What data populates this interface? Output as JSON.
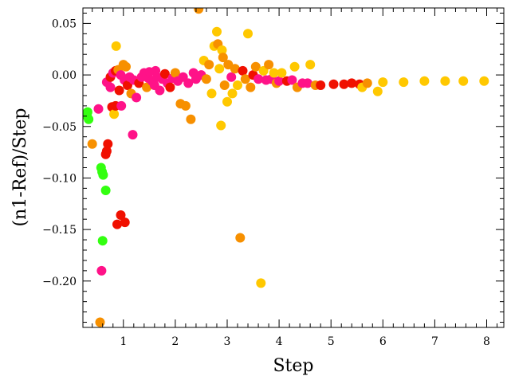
{
  "chart_data": {
    "type": "scatter",
    "title": "",
    "xlabel": "Step",
    "ylabel": "(n1-Ref)/Step",
    "xlim": [
      0.22,
      8.33
    ],
    "ylim": [
      -0.245,
      0.065
    ],
    "grid": false,
    "legend": "none",
    "xticks": [
      1,
      2,
      3,
      4,
      5,
      6,
      7,
      8
    ],
    "xtick_labels": [
      "1",
      "2",
      "3",
      "4",
      "5",
      "6",
      "7",
      "8"
    ],
    "yticks": [
      0.05,
      0.0,
      -0.05,
      -0.1,
      -0.15,
      -0.2
    ],
    "ytick_labels": [
      "0.05",
      "0.00",
      "−0.05",
      "−0.10",
      "−0.15",
      "−0.20"
    ],
    "colors": {
      "yellow": "#ffc800",
      "orange": "#f79000",
      "red": "#f01000",
      "pink": "#ff1288",
      "green": "#33ff10"
    },
    "points": [
      {
        "x": 0.3,
        "y": -0.04,
        "c": "green"
      },
      {
        "x": 0.31,
        "y": -0.036,
        "c": "green"
      },
      {
        "x": 0.33,
        "y": -0.043,
        "c": "green"
      },
      {
        "x": 0.4,
        "y": -0.067,
        "c": "orange"
      },
      {
        "x": 0.52,
        "y": -0.033,
        "c": "pink"
      },
      {
        "x": 0.55,
        "y": -0.24,
        "c": "orange"
      },
      {
        "x": 0.57,
        "y": -0.09,
        "c": "green"
      },
      {
        "x": 0.58,
        "y": -0.19,
        "c": "pink"
      },
      {
        "x": 0.59,
        "y": -0.094,
        "c": "green"
      },
      {
        "x": 0.6,
        "y": -0.161,
        "c": "green"
      },
      {
        "x": 0.61,
        "y": -0.097,
        "c": "green"
      },
      {
        "x": 0.66,
        "y": -0.112,
        "c": "green"
      },
      {
        "x": 0.66,
        "y": -0.077,
        "c": "red"
      },
      {
        "x": 0.68,
        "y": -0.074,
        "c": "red"
      },
      {
        "x": 0.7,
        "y": -0.067,
        "c": "red"
      },
      {
        "x": 0.68,
        "y": -0.007,
        "c": "pink"
      },
      {
        "x": 0.75,
        "y": -0.012,
        "c": "pink"
      },
      {
        "x": 0.78,
        "y": -0.031,
        "c": "red"
      },
      {
        "x": 0.82,
        "y": -0.038,
        "c": "yellow"
      },
      {
        "x": 0.86,
        "y": 0.028,
        "c": "yellow"
      },
      {
        "x": 0.85,
        "y": -0.03,
        "c": "red"
      },
      {
        "x": 0.88,
        "y": -0.145,
        "c": "red"
      },
      {
        "x": 0.92,
        "y": -0.015,
        "c": "red"
      },
      {
        "x": 0.95,
        "y": -0.136,
        "c": "red"
      },
      {
        "x": 0.96,
        "y": -0.03,
        "c": "pink"
      },
      {
        "x": 1.03,
        "y": -0.143,
        "c": "red"
      },
      {
        "x": 1.18,
        "y": -0.058,
        "c": "pink"
      },
      {
        "x": 0.75,
        "y": -0.002,
        "c": "red"
      },
      {
        "x": 0.8,
        "y": 0.002,
        "c": "pink"
      },
      {
        "x": 0.85,
        "y": 0.004,
        "c": "red"
      },
      {
        "x": 0.9,
        "y": 0.005,
        "c": "orange"
      },
      {
        "x": 0.95,
        "y": 0.0,
        "c": "pink"
      },
      {
        "x": 1.0,
        "y": 0.01,
        "c": "orange"
      },
      {
        "x": 1.02,
        "y": -0.005,
        "c": "pink"
      },
      {
        "x": 1.05,
        "y": 0.008,
        "c": "orange"
      },
      {
        "x": 1.08,
        "y": -0.01,
        "c": "red"
      },
      {
        "x": 1.12,
        "y": -0.002,
        "c": "pink"
      },
      {
        "x": 1.15,
        "y": -0.018,
        "c": "orange"
      },
      {
        "x": 1.2,
        "y": -0.005,
        "c": "pink"
      },
      {
        "x": 1.25,
        "y": -0.022,
        "c": "pink"
      },
      {
        "x": 1.3,
        "y": -0.008,
        "c": "red"
      },
      {
        "x": 1.35,
        "y": -0.002,
        "c": "pink"
      },
      {
        "x": 1.4,
        "y": 0.002,
        "c": "pink"
      },
      {
        "x": 1.45,
        "y": -0.012,
        "c": "orange"
      },
      {
        "x": 1.48,
        "y": -0.003,
        "c": "pink"
      },
      {
        "x": 1.5,
        "y": 0.003,
        "c": "pink"
      },
      {
        "x": 1.55,
        "y": -0.006,
        "c": "pink"
      },
      {
        "x": 1.6,
        "y": -0.01,
        "c": "pink"
      },
      {
        "x": 1.62,
        "y": 0.004,
        "c": "pink"
      },
      {
        "x": 1.65,
        "y": -0.002,
        "c": "pink"
      },
      {
        "x": 1.7,
        "y": -0.015,
        "c": "pink"
      },
      {
        "x": 1.75,
        "y": -0.004,
        "c": "pink"
      },
      {
        "x": 1.8,
        "y": 0.001,
        "c": "red"
      },
      {
        "x": 1.85,
        "y": -0.008,
        "c": "pink"
      },
      {
        "x": 1.9,
        "y": -0.012,
        "c": "red"
      },
      {
        "x": 1.95,
        "y": -0.003,
        "c": "pink"
      },
      {
        "x": 2.0,
        "y": 0.002,
        "c": "orange"
      },
      {
        "x": 2.05,
        "y": -0.006,
        "c": "pink"
      },
      {
        "x": 2.1,
        "y": -0.028,
        "c": "orange"
      },
      {
        "x": 2.15,
        "y": -0.002,
        "c": "pink"
      },
      {
        "x": 2.2,
        "y": -0.03,
        "c": "orange"
      },
      {
        "x": 2.25,
        "y": -0.008,
        "c": "pink"
      },
      {
        "x": 2.3,
        "y": -0.043,
        "c": "orange"
      },
      {
        "x": 2.35,
        "y": 0.002,
        "c": "pink"
      },
      {
        "x": 2.4,
        "y": -0.004,
        "c": "pink"
      },
      {
        "x": 2.45,
        "y": 0.064,
        "c": "orange"
      },
      {
        "x": 2.5,
        "y": 0.0,
        "c": "pink"
      },
      {
        "x": 2.55,
        "y": 0.014,
        "c": "yellow"
      },
      {
        "x": 2.6,
        "y": -0.004,
        "c": "orange"
      },
      {
        "x": 2.65,
        "y": 0.01,
        "c": "orange"
      },
      {
        "x": 2.7,
        "y": -0.018,
        "c": "yellow"
      },
      {
        "x": 2.75,
        "y": 0.028,
        "c": "yellow"
      },
      {
        "x": 2.8,
        "y": 0.042,
        "c": "yellow"
      },
      {
        "x": 2.82,
        "y": 0.03,
        "c": "orange"
      },
      {
        "x": 2.85,
        "y": 0.006,
        "c": "yellow"
      },
      {
        "x": 2.88,
        "y": -0.049,
        "c": "yellow"
      },
      {
        "x": 2.9,
        "y": 0.024,
        "c": "yellow"
      },
      {
        "x": 2.92,
        "y": 0.017,
        "c": "orange"
      },
      {
        "x": 2.95,
        "y": -0.01,
        "c": "orange"
      },
      {
        "x": 3.0,
        "y": -0.026,
        "c": "yellow"
      },
      {
        "x": 3.02,
        "y": 0.01,
        "c": "orange"
      },
      {
        "x": 3.08,
        "y": -0.002,
        "c": "pink"
      },
      {
        "x": 3.1,
        "y": -0.018,
        "c": "yellow"
      },
      {
        "x": 3.15,
        "y": 0.006,
        "c": "orange"
      },
      {
        "x": 3.2,
        "y": -0.01,
        "c": "yellow"
      },
      {
        "x": 3.25,
        "y": -0.158,
        "c": "orange"
      },
      {
        "x": 3.3,
        "y": 0.004,
        "c": "red"
      },
      {
        "x": 3.35,
        "y": -0.004,
        "c": "orange"
      },
      {
        "x": 3.4,
        "y": 0.04,
        "c": "yellow"
      },
      {
        "x": 3.45,
        "y": -0.012,
        "c": "orange"
      },
      {
        "x": 3.5,
        "y": 0.0,
        "c": "red"
      },
      {
        "x": 3.55,
        "y": 0.008,
        "c": "orange"
      },
      {
        "x": 3.6,
        "y": -0.004,
        "c": "pink"
      },
      {
        "x": 3.65,
        "y": -0.202,
        "c": "yellow"
      },
      {
        "x": 3.7,
        "y": 0.004,
        "c": "yellow"
      },
      {
        "x": 3.75,
        "y": -0.005,
        "c": "pink"
      },
      {
        "x": 3.8,
        "y": 0.01,
        "c": "orange"
      },
      {
        "x": 3.85,
        "y": -0.004,
        "c": "pink"
      },
      {
        "x": 3.9,
        "y": 0.002,
        "c": "yellow"
      },
      {
        "x": 3.95,
        "y": -0.008,
        "c": "orange"
      },
      {
        "x": 4.0,
        "y": -0.006,
        "c": "pink"
      },
      {
        "x": 4.05,
        "y": 0.002,
        "c": "yellow"
      },
      {
        "x": 4.15,
        "y": -0.006,
        "c": "red"
      },
      {
        "x": 4.25,
        "y": -0.005,
        "c": "pink"
      },
      {
        "x": 4.3,
        "y": 0.008,
        "c": "yellow"
      },
      {
        "x": 4.35,
        "y": -0.012,
        "c": "orange"
      },
      {
        "x": 4.45,
        "y": -0.008,
        "c": "pink"
      },
      {
        "x": 4.55,
        "y": -0.008,
        "c": "pink"
      },
      {
        "x": 4.6,
        "y": 0.01,
        "c": "yellow"
      },
      {
        "x": 4.7,
        "y": -0.01,
        "c": "orange"
      },
      {
        "x": 4.8,
        "y": -0.01,
        "c": "red"
      },
      {
        "x": 5.05,
        "y": -0.009,
        "c": "red"
      },
      {
        "x": 5.25,
        "y": -0.009,
        "c": "red"
      },
      {
        "x": 5.4,
        "y": -0.008,
        "c": "red"
      },
      {
        "x": 5.55,
        "y": -0.009,
        "c": "red"
      },
      {
        "x": 5.6,
        "y": -0.012,
        "c": "yellow"
      },
      {
        "x": 5.7,
        "y": -0.008,
        "c": "orange"
      },
      {
        "x": 5.9,
        "y": -0.016,
        "c": "yellow"
      },
      {
        "x": 6.0,
        "y": -0.007,
        "c": "yellow"
      },
      {
        "x": 6.4,
        "y": -0.007,
        "c": "yellow"
      },
      {
        "x": 6.8,
        "y": -0.006,
        "c": "yellow"
      },
      {
        "x": 7.2,
        "y": -0.006,
        "c": "yellow"
      },
      {
        "x": 7.55,
        "y": -0.006,
        "c": "yellow"
      },
      {
        "x": 7.95,
        "y": -0.006,
        "c": "yellow"
      }
    ]
  }
}
